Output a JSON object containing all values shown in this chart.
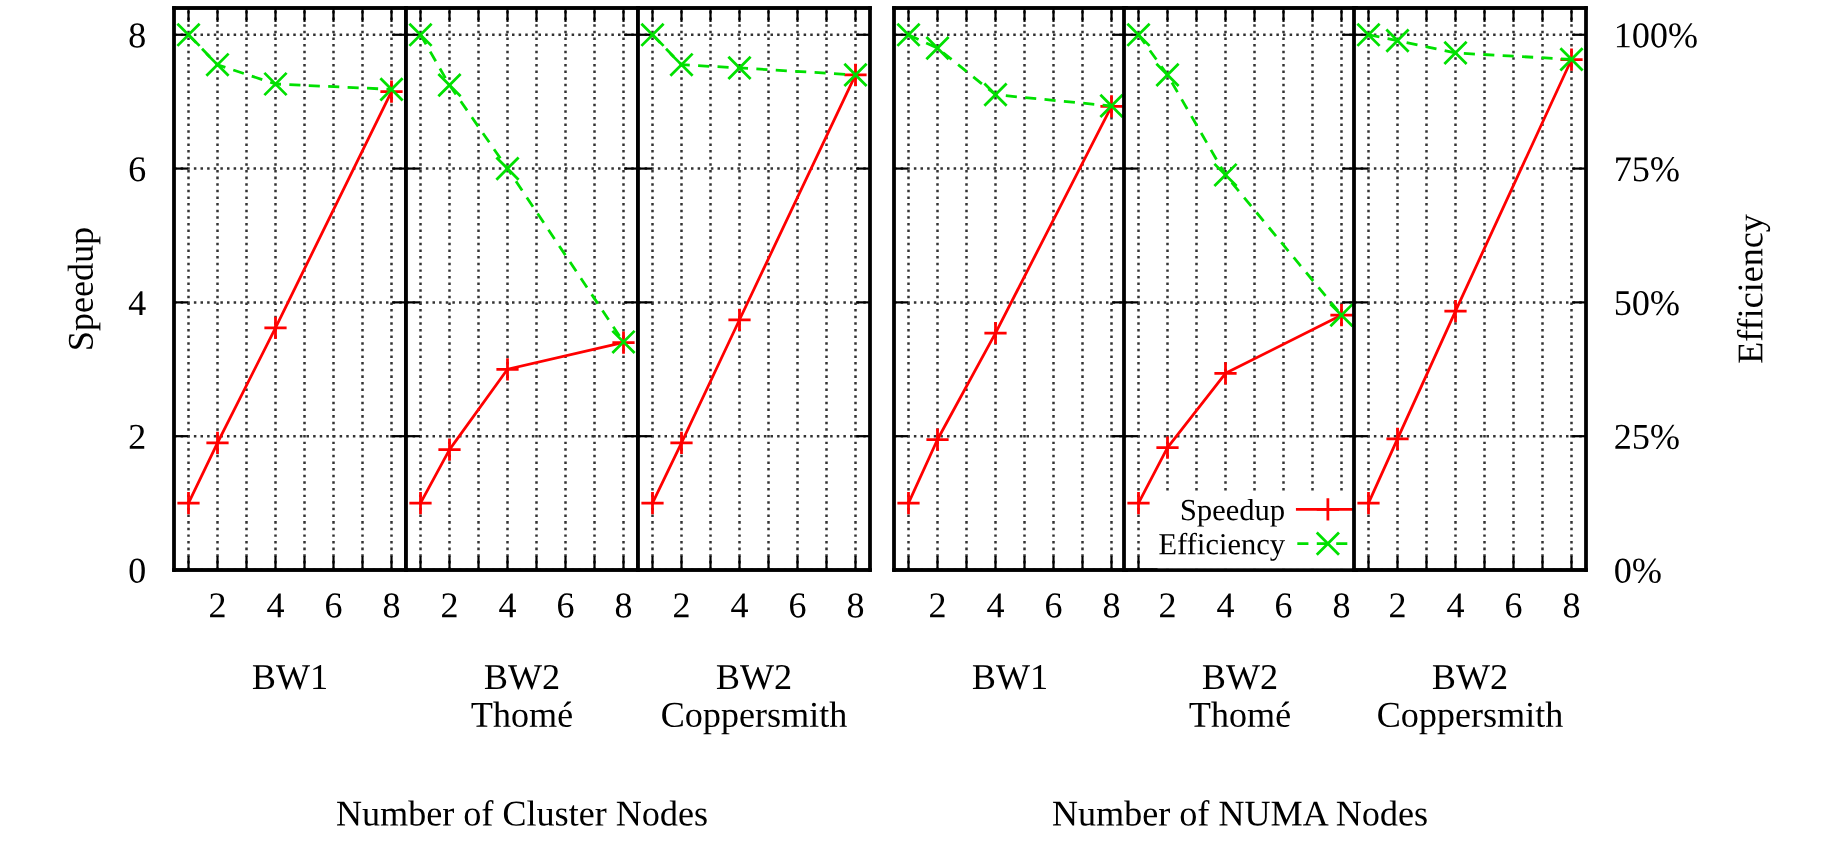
{
  "chart_data": [
    {
      "type": "line",
      "x": [
        1,
        2,
        4,
        8
      ],
      "xlabel": "BW1",
      "ylabel": "Speedup",
      "xlim": [
        0.5,
        8.5
      ],
      "ylim": [
        0,
        8.4
      ],
      "y2lim": [
        0,
        105
      ],
      "xticks": [
        {
          "value": 1,
          "label": null
        },
        2,
        {
          "value": 3,
          "label": null
        },
        4,
        {
          "value": 5,
          "label": null
        },
        6,
        {
          "value": 7,
          "label": null
        },
        8
      ],
      "yticks": [
        0,
        2,
        4,
        6,
        8
      ],
      "grid": true,
      "series": [
        {
          "color": "#ff0000",
          "marker": "plus",
          "line_style": "solid",
          "values": [
            1.0,
            1.9,
            3.62,
            7.15
          ]
        },
        {
          "color": "#00e000",
          "marker": "cross",
          "line_style": "dashed",
          "axis": "y2",
          "values": [
            100,
            94.4,
            90.8,
            89.8
          ]
        }
      ]
    },
    {
      "type": "line",
      "x": [
        1,
        2,
        4,
        8
      ],
      "xlabel": "BW2\nThomé",
      "xlim": [
        0.5,
        8.5
      ],
      "ylim": [
        0,
        8.4
      ],
      "y2lim": [
        0,
        105
      ],
      "xticks": [
        {
          "value": 1,
          "label": null
        },
        2,
        {
          "value": 3,
          "label": null
        },
        4,
        {
          "value": 5,
          "label": null
        },
        6,
        {
          "value": 7,
          "label": null
        },
        8
      ],
      "grid": true,
      "annotations": [
        "Number of Cluster Nodes"
      ],
      "series": [
        {
          "color": "#ff0000",
          "marker": "plus",
          "line_style": "solid",
          "values": [
            1.0,
            1.8,
            3.0,
            3.4
          ]
        },
        {
          "color": "#00e000",
          "marker": "cross",
          "line_style": "dashed",
          "axis": "y2",
          "values": [
            100,
            90.6,
            75,
            42.6
          ]
        }
      ]
    },
    {
      "type": "line",
      "x": [
        1,
        2,
        4,
        8
      ],
      "xlabel": "BW2\nCoppersmith",
      "xlim": [
        0.5,
        8.5
      ],
      "ylim": [
        0,
        8.4
      ],
      "y2lim": [
        0,
        105
      ],
      "xticks": [
        {
          "value": 1,
          "label": null
        },
        2,
        {
          "value": 3,
          "label": null
        },
        4,
        {
          "value": 5,
          "label": null
        },
        6,
        {
          "value": 7,
          "label": null
        },
        8
      ],
      "grid": true,
      "series": [
        {
          "color": "#ff0000",
          "marker": "plus",
          "line_style": "solid",
          "values": [
            1.0,
            1.9,
            3.74,
            7.4
          ]
        },
        {
          "color": "#00e000",
          "marker": "cross",
          "line_style": "dashed",
          "axis": "y2",
          "values": [
            100,
            94.4,
            93.8,
            92.5
          ]
        }
      ]
    },
    {
      "type": "line",
      "x": [
        1,
        2,
        4,
        8
      ],
      "xlabel": "BW1",
      "xlim": [
        0.5,
        8.5
      ],
      "ylim": [
        0,
        8.4
      ],
      "y2lim": [
        0,
        105
      ],
      "xticks": [
        {
          "value": 1,
          "label": null
        },
        2,
        {
          "value": 3,
          "label": null
        },
        4,
        {
          "value": 5,
          "label": null
        },
        6,
        {
          "value": 7,
          "label": null
        },
        8
      ],
      "grid": true,
      "series": [
        {
          "color": "#ff0000",
          "marker": "plus",
          "line_style": "solid",
          "values": [
            1.0,
            1.95,
            3.54,
            6.93
          ]
        },
        {
          "color": "#00e000",
          "marker": "cross",
          "line_style": "dashed",
          "axis": "y2",
          "values": [
            100,
            97.5,
            88.8,
            86.7
          ]
        }
      ]
    },
    {
      "type": "line",
      "x": [
        1,
        2,
        4,
        8
      ],
      "xlabel": "BW2\nThomé",
      "xlim": [
        0.5,
        8.5
      ],
      "ylim": [
        0,
        8.4
      ],
      "y2lim": [
        0,
        105
      ],
      "xticks": [
        {
          "value": 1,
          "label": null
        },
        2,
        {
          "value": 3,
          "label": null
        },
        4,
        {
          "value": 5,
          "label": null
        },
        6,
        {
          "value": 7,
          "label": null
        },
        8
      ],
      "grid": true,
      "legend": "bottom right",
      "annotations": [
        "Number of NUMA Nodes"
      ],
      "series": [
        {
          "name": "Speedup",
          "color": "#ff0000",
          "marker": "plus",
          "line_style": "solid",
          "values": [
            1.0,
            1.83,
            2.94,
            3.81
          ]
        },
        {
          "name": "Efficiency",
          "color": "#00e000",
          "marker": "cross",
          "line_style": "dashed",
          "axis": "y2",
          "values": [
            100,
            92.5,
            73.8,
            47.6
          ]
        }
      ]
    },
    {
      "type": "line",
      "x": [
        1,
        2,
        4,
        8
      ],
      "xlabel": "BW2\nCoppersmith",
      "y2label": "Efficiency",
      "xlim": [
        0.5,
        8.5
      ],
      "ylim": [
        0,
        8.4
      ],
      "y2lim": [
        0,
        105
      ],
      "xticks": [
        {
          "value": 1,
          "label": null
        },
        2,
        {
          "value": 3,
          "label": null
        },
        4,
        {
          "value": 5,
          "label": null
        },
        6,
        {
          "value": 7,
          "label": null
        },
        8
      ],
      "y2ticks": [
        {
          "value": 0,
          "label": "0%"
        },
        {
          "value": 25,
          "label": "25%"
        },
        {
          "value": 50,
          "label": "50%"
        },
        {
          "value": 75,
          "label": "75%"
        },
        {
          "value": 100,
          "label": "100%"
        }
      ],
      "grid": true,
      "series": [
        {
          "color": "#ff0000",
          "marker": "plus",
          "line_style": "solid",
          "values": [
            1.0,
            1.96,
            3.87,
            7.63
          ]
        },
        {
          "color": "#00e000",
          "marker": "cross",
          "line_style": "dashed",
          "axis": "y2",
          "values": [
            100,
            98.9,
            96.6,
            95.4
          ]
        }
      ]
    }
  ]
}
